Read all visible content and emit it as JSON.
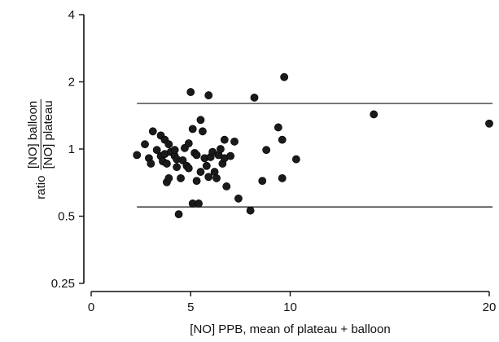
{
  "chart_data": {
    "type": "scatter",
    "xlabel": "[NO] PPB, mean of plateau + balloon",
    "ylabel": {
      "prefix": "ratio",
      "numerator": "[NO] balloon",
      "denominator": "[NO] plateau"
    },
    "x_scale": "linear",
    "y_scale": "log",
    "xlim": [
      0,
      20
    ],
    "ylim": [
      0.25,
      4
    ],
    "x_ticks": [
      0,
      5,
      10,
      20
    ],
    "x_tick_labels": [
      "0",
      "5",
      "10",
      "20"
    ],
    "y_ticks": [
      0.25,
      0.5,
      1,
      2,
      4
    ],
    "y_tick_labels": [
      "0.25",
      "0.5",
      "1",
      "2",
      "4"
    ],
    "reference_lines": [
      1.6,
      0.55
    ],
    "grid": false,
    "marker_color": "#1a1a1a",
    "points": [
      {
        "x": 2.3,
        "y": 0.94
      },
      {
        "x": 2.7,
        "y": 1.05
      },
      {
        "x": 2.9,
        "y": 0.91
      },
      {
        "x": 3.0,
        "y": 0.86
      },
      {
        "x": 3.1,
        "y": 1.2
      },
      {
        "x": 3.3,
        "y": 0.99
      },
      {
        "x": 3.5,
        "y": 0.93
      },
      {
        "x": 3.5,
        "y": 1.15
      },
      {
        "x": 3.6,
        "y": 0.88
      },
      {
        "x": 3.7,
        "y": 1.1
      },
      {
        "x": 3.7,
        "y": 0.95
      },
      {
        "x": 3.8,
        "y": 0.86
      },
      {
        "x": 3.8,
        "y": 0.71
      },
      {
        "x": 3.9,
        "y": 0.74
      },
      {
        "x": 3.9,
        "y": 1.05
      },
      {
        "x": 4.0,
        "y": 0.97
      },
      {
        "x": 4.2,
        "y": 0.93
      },
      {
        "x": 4.2,
        "y": 0.99
      },
      {
        "x": 4.3,
        "y": 0.9
      },
      {
        "x": 4.3,
        "y": 0.83
      },
      {
        "x": 4.4,
        "y": 0.51
      },
      {
        "x": 4.5,
        "y": 0.74
      },
      {
        "x": 4.6,
        "y": 0.89
      },
      {
        "x": 4.7,
        "y": 1.01
      },
      {
        "x": 4.8,
        "y": 0.84
      },
      {
        "x": 4.9,
        "y": 1.06
      },
      {
        "x": 4.9,
        "y": 0.82
      },
      {
        "x": 5.0,
        "y": 1.8
      },
      {
        "x": 5.1,
        "y": 0.57
      },
      {
        "x": 5.1,
        "y": 1.23
      },
      {
        "x": 5.2,
        "y": 0.96
      },
      {
        "x": 5.3,
        "y": 0.72
      },
      {
        "x": 5.3,
        "y": 0.94
      },
      {
        "x": 5.4,
        "y": 0.57
      },
      {
        "x": 5.5,
        "y": 1.35
      },
      {
        "x": 5.5,
        "y": 0.79
      },
      {
        "x": 5.6,
        "y": 1.2
      },
      {
        "x": 5.7,
        "y": 0.91
      },
      {
        "x": 5.8,
        "y": 0.84
      },
      {
        "x": 5.9,
        "y": 1.74
      },
      {
        "x": 5.9,
        "y": 0.75
      },
      {
        "x": 6.0,
        "y": 0.92
      },
      {
        "x": 6.1,
        "y": 0.97
      },
      {
        "x": 6.2,
        "y": 0.79
      },
      {
        "x": 6.3,
        "y": 0.74
      },
      {
        "x": 6.4,
        "y": 0.94
      },
      {
        "x": 6.5,
        "y": 1.0
      },
      {
        "x": 6.6,
        "y": 0.86
      },
      {
        "x": 6.7,
        "y": 0.91
      },
      {
        "x": 6.7,
        "y": 1.1
      },
      {
        "x": 6.8,
        "y": 0.68
      },
      {
        "x": 7.0,
        "y": 0.93
      },
      {
        "x": 7.2,
        "y": 1.08
      },
      {
        "x": 7.4,
        "y": 0.6
      },
      {
        "x": 8.0,
        "y": 0.53
      },
      {
        "x": 8.2,
        "y": 1.7
      },
      {
        "x": 8.6,
        "y": 0.72
      },
      {
        "x": 8.8,
        "y": 0.99
      },
      {
        "x": 9.4,
        "y": 1.25
      },
      {
        "x": 9.6,
        "y": 1.1
      },
      {
        "x": 9.6,
        "y": 0.74
      },
      {
        "x": 9.7,
        "y": 2.1
      },
      {
        "x": 10.3,
        "y": 0.9
      },
      {
        "x": 14.2,
        "y": 1.43
      },
      {
        "x": 20.0,
        "y": 1.3
      }
    ]
  }
}
